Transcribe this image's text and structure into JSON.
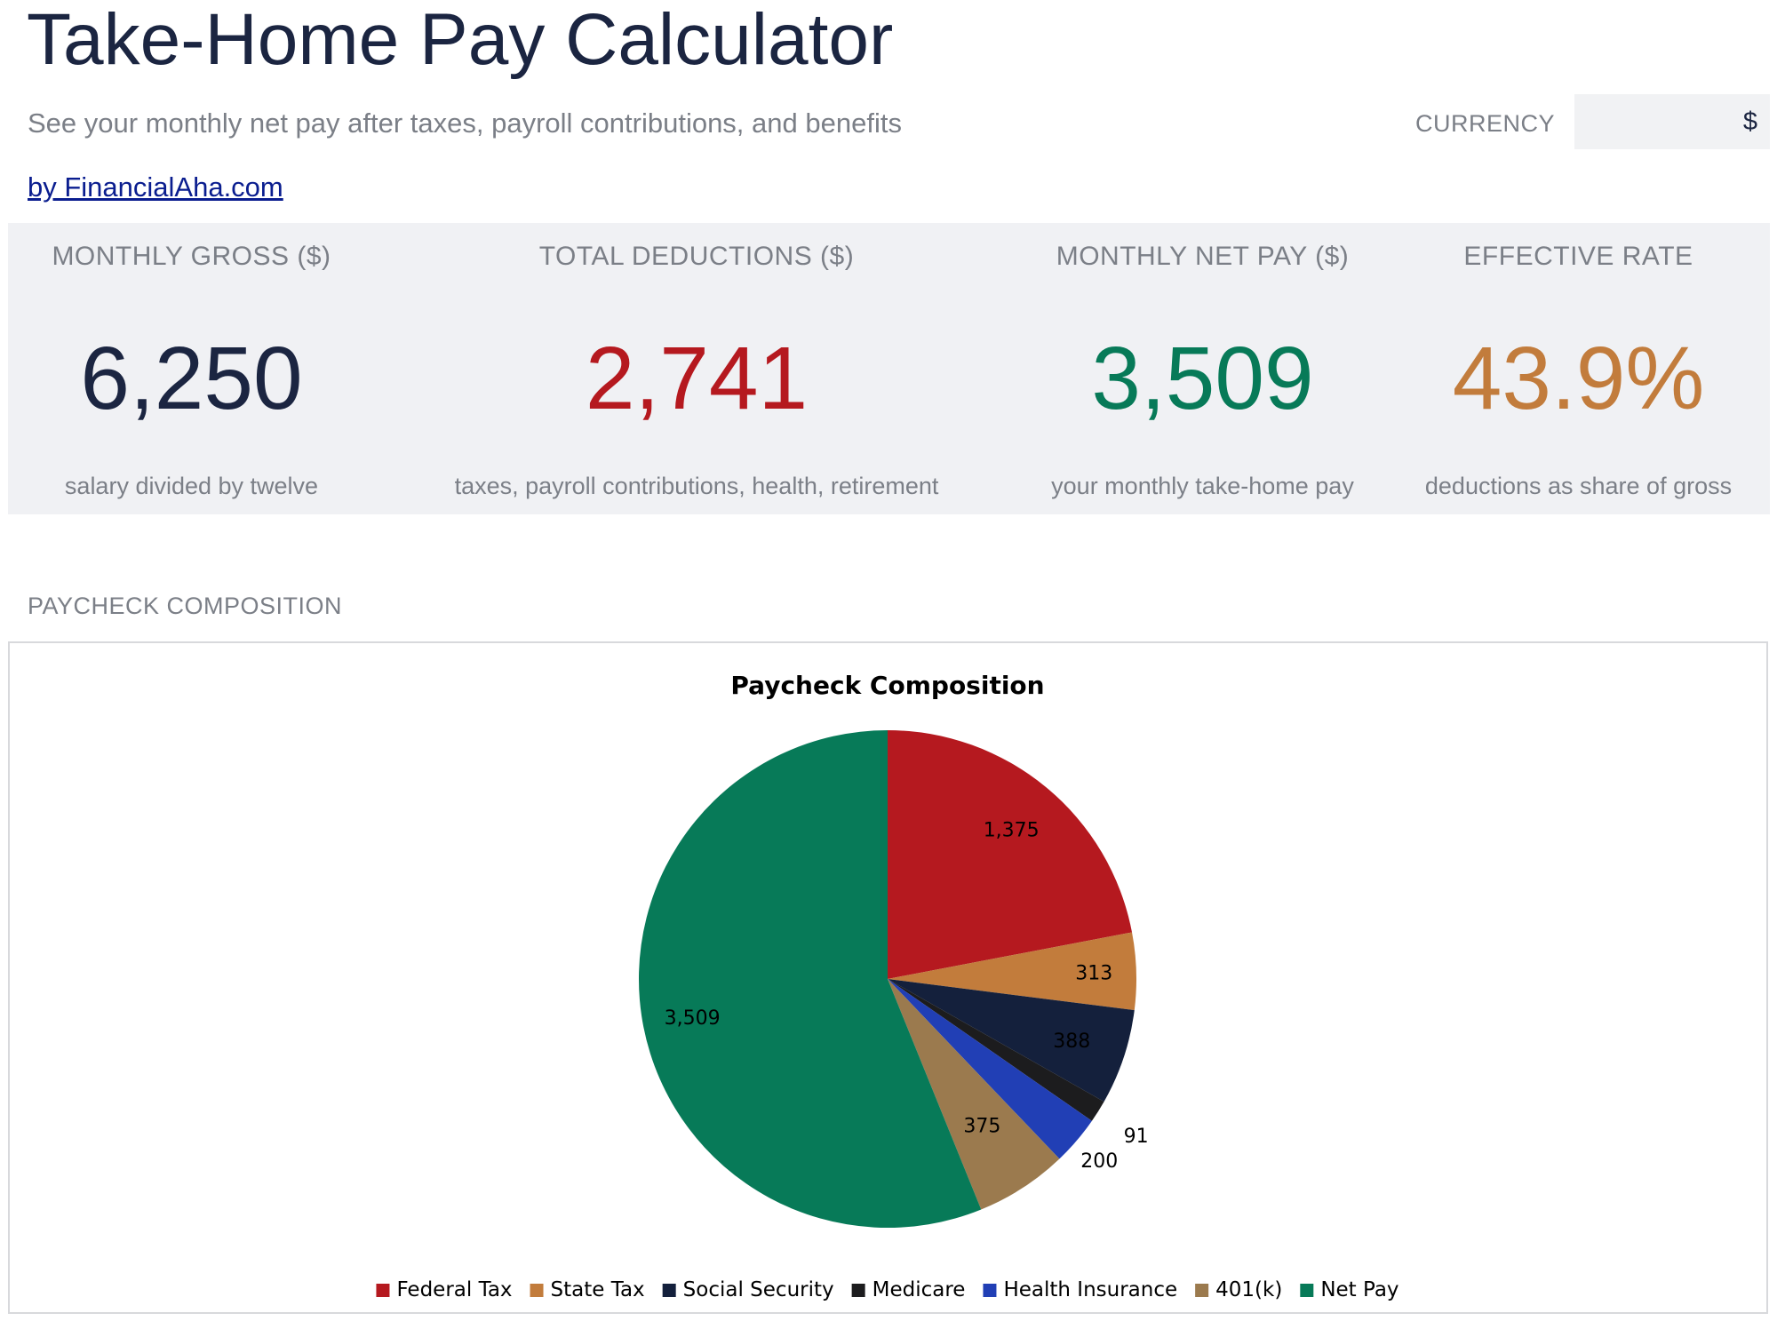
{
  "header": {
    "title": "Take-Home Pay Calculator",
    "subtitle": "See your monthly net pay after taxes, payroll contributions, and benefits",
    "byline": "by FinancialAha.com",
    "currency_label": "CURRENCY",
    "currency_value": "$"
  },
  "kpis": [
    {
      "label": "MONTHLY GROSS ($)",
      "value": "6,250",
      "note": "salary divided by twelve",
      "color": "#1b2541"
    },
    {
      "label": "TOTAL DEDUCTIONS ($)",
      "value": "2,741",
      "note": "taxes, payroll contributions, health, retirement",
      "color": "#b5191f"
    },
    {
      "label": "MONTHLY NET PAY ($)",
      "value": "3,509",
      "note": "your monthly take-home pay",
      "color": "#077a58"
    },
    {
      "label": "EFFECTIVE RATE",
      "value": "43.9%",
      "note": "deductions as share of gross",
      "color": "#c27c3c"
    }
  ],
  "section": {
    "heading": "PAYCHECK COMPOSITION"
  },
  "chart_data": {
    "type": "pie",
    "title": "Paycheck Composition",
    "legend_position": "bottom",
    "categories": [
      "Federal Tax",
      "State Tax",
      "Social Security",
      "Medicare",
      "Health Insurance",
      "401(k)",
      "Net Pay"
    ],
    "values": [
      1375,
      313,
      388,
      91,
      200,
      375,
      3509
    ],
    "labels": [
      "1,375",
      "313",
      "388",
      "91",
      "200",
      "375",
      "3,509"
    ],
    "colors": [
      "#b5191f",
      "#c27c3c",
      "#14203c",
      "#1c1c1e",
      "#213fb5",
      "#9b7a4e",
      "#077a58"
    ]
  }
}
